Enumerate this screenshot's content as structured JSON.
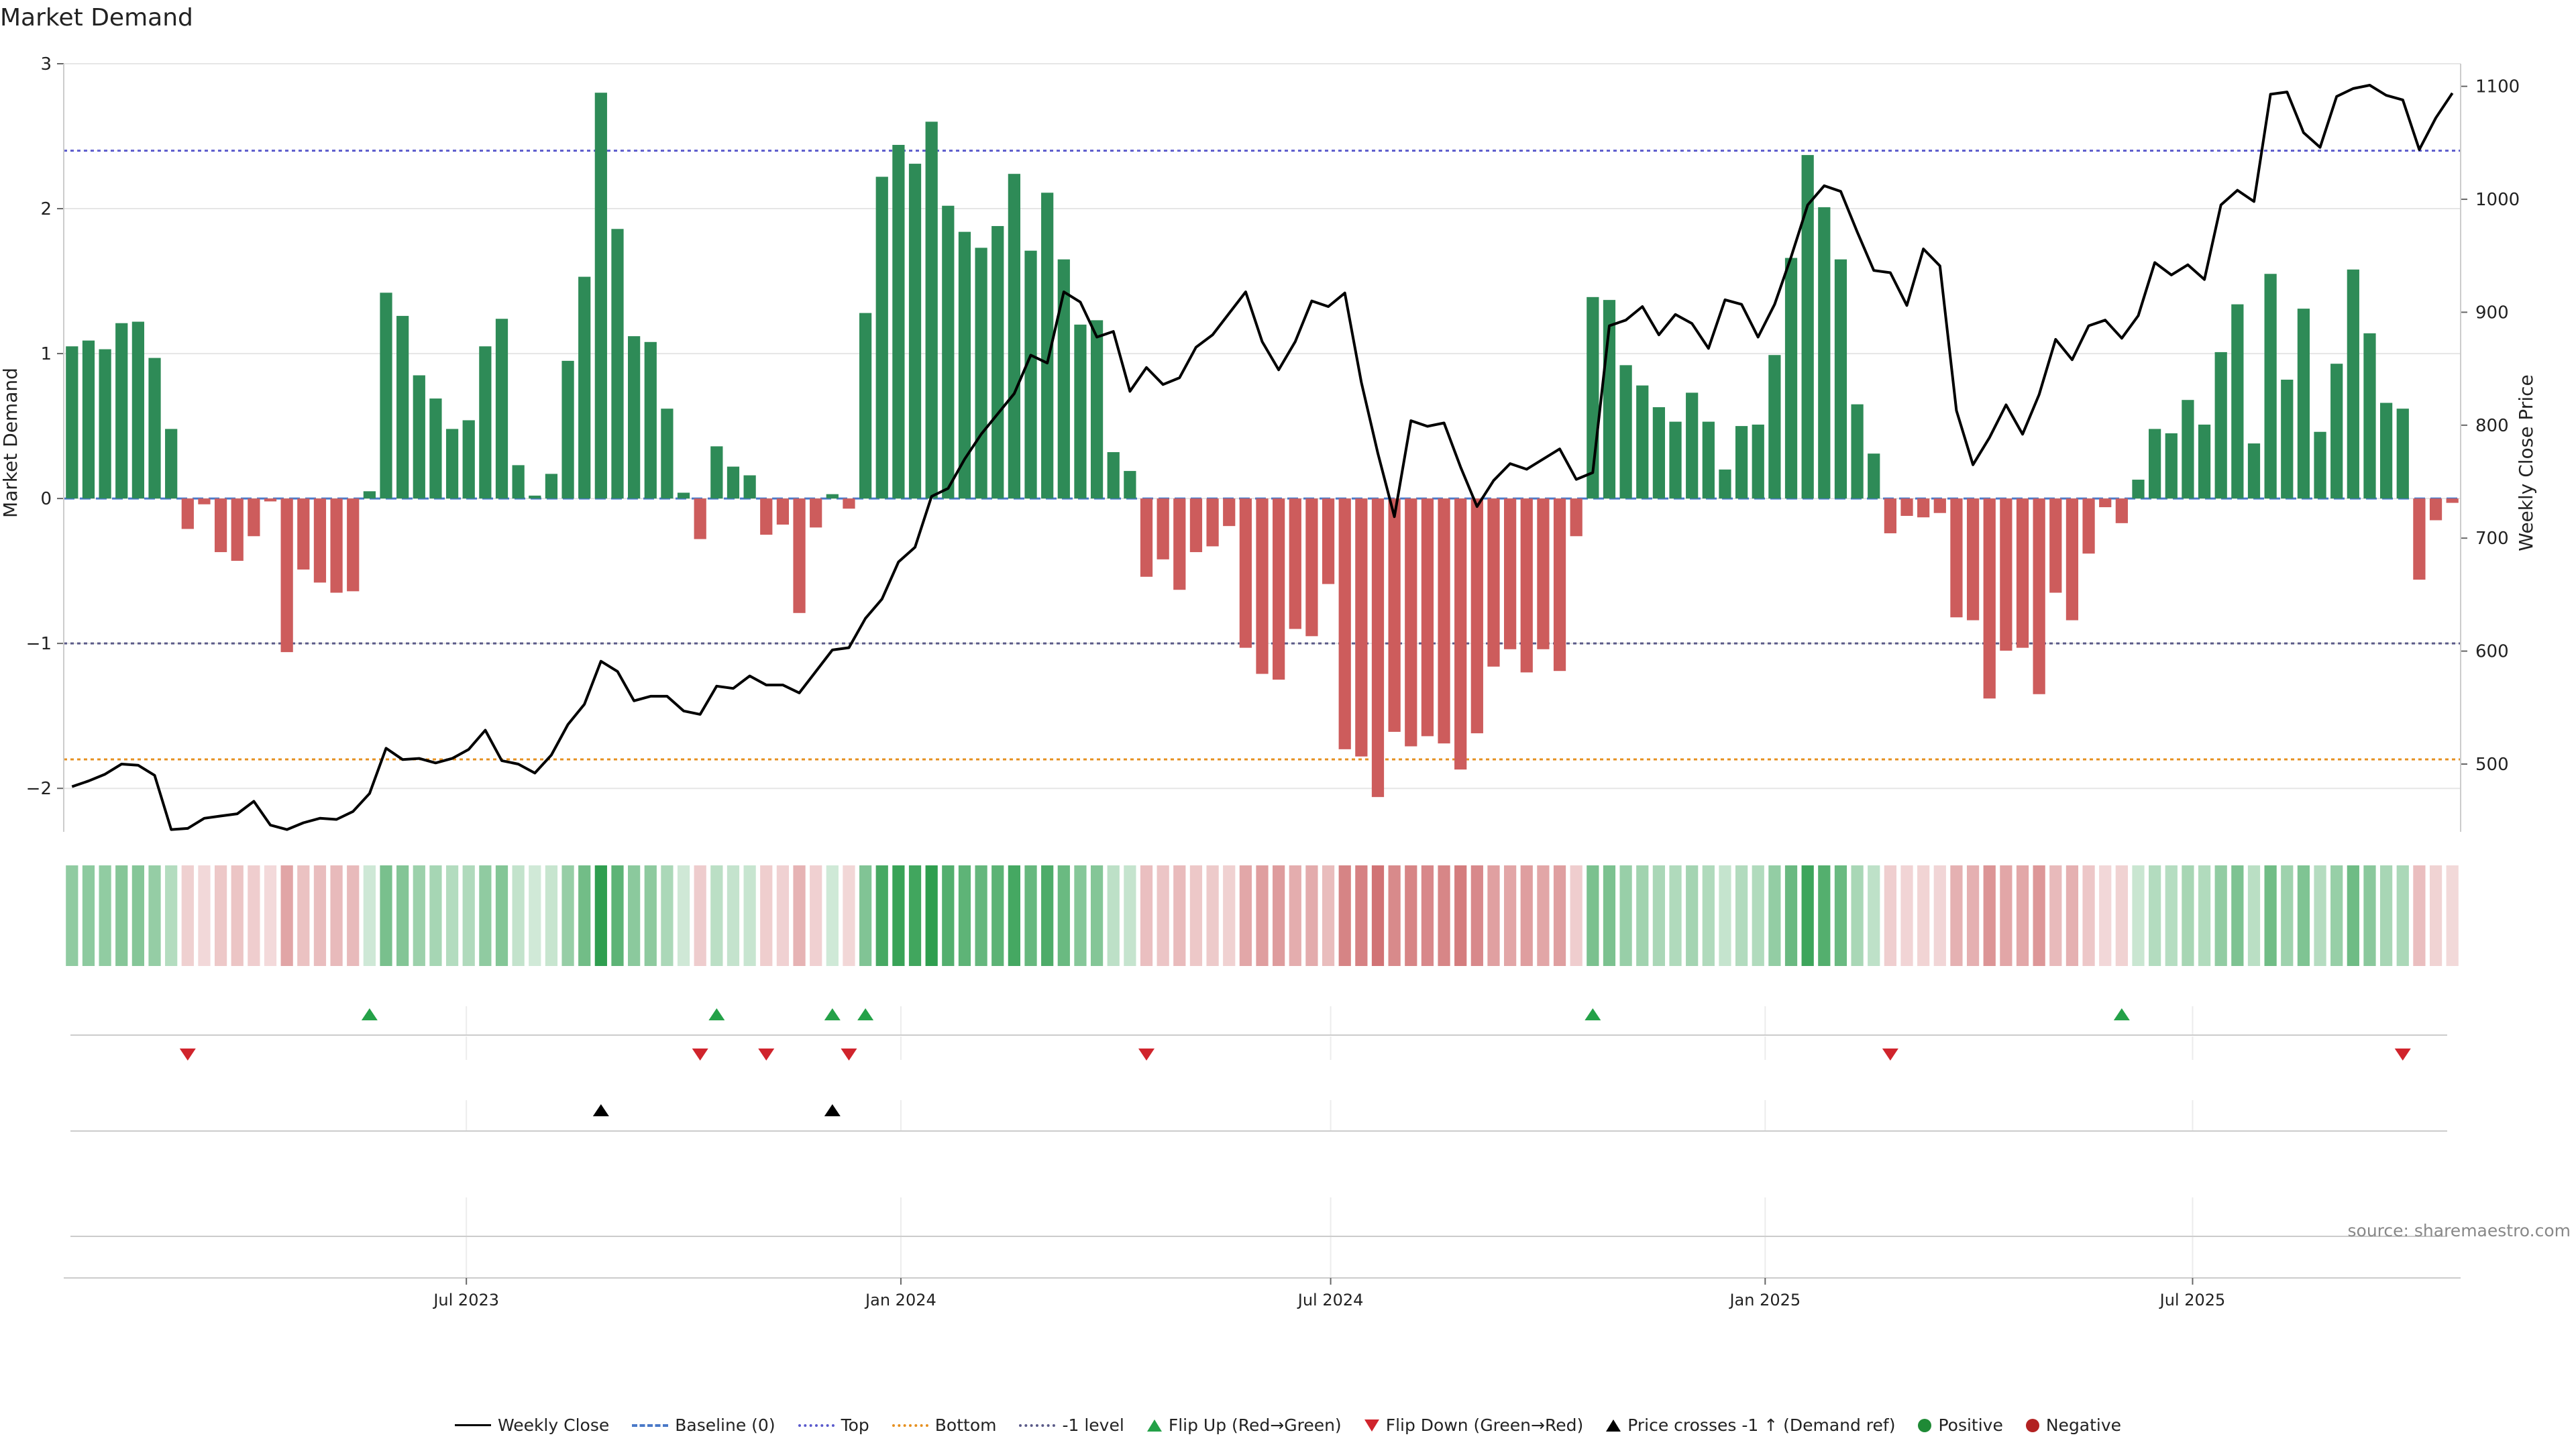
{
  "title": "Market Demand",
  "source": "source: sharemaestro.com",
  "chart_data": {
    "type": "bar",
    "title": "Market Demand",
    "ylabel": "Market Demand",
    "y2label": "Weekly Close Price",
    "ylim": [
      -2.3,
      3.0
    ],
    "y_ticks": [
      3,
      2,
      1,
      0,
      -1,
      -2
    ],
    "y_tick_labels": [
      "3",
      "2",
      "1",
      "0",
      "−1",
      "−2"
    ],
    "y2lim": [
      440,
      1120
    ],
    "y2_ticks": [
      1100,
      1000,
      900,
      800,
      700,
      600,
      500
    ],
    "x_start": "2023-01-15",
    "week_days": 7,
    "x_ticks": [
      {
        "date": "2023-07-01",
        "label": "Jul 2023"
      },
      {
        "date": "2024-01-01",
        "label": "Jan 2024"
      },
      {
        "date": "2024-07-01",
        "label": "Jul 2024"
      },
      {
        "date": "2025-01-01",
        "label": "Jan 2025"
      },
      {
        "date": "2025-07-01",
        "label": "Jul 2025"
      }
    ],
    "reference_lines": [
      {
        "name": "Top",
        "value": 2.4,
        "color": "#5a5acc"
      },
      {
        "name": "Bottom",
        "value": -1.8,
        "color": "#e69020"
      },
      {
        "name": "-1 level",
        "value": -1.0,
        "color": "#5a5a88"
      },
      {
        "name": "Baseline (0)",
        "value": 0,
        "color": "#4a79c8"
      }
    ],
    "series": [
      {
        "name": "Market Demand",
        "type": "bar",
        "colors": {
          "positive": "#2e8b57",
          "negative": "#cd5c5c"
        },
        "values": [
          1.05,
          1.09,
          1.03,
          1.21,
          1.22,
          0.97,
          0.48,
          -0.21,
          -0.04,
          -0.37,
          -0.43,
          -0.26,
          -0.02,
          -1.06,
          -0.49,
          -0.58,
          -0.65,
          -0.64,
          0.05,
          1.42,
          1.26,
          0.85,
          0.69,
          0.48,
          0.54,
          1.05,
          1.24,
          0.23,
          0.02,
          0.17,
          0.95,
          1.53,
          2.8,
          1.86,
          1.12,
          1.08,
          0.62,
          0.04,
          -0.28,
          0.36,
          0.22,
          0.16,
          -0.25,
          -0.18,
          -0.79,
          -0.2,
          0.03,
          -0.07,
          1.28,
          2.22,
          2.44,
          2.31,
          2.6,
          2.02,
          1.84,
          1.73,
          1.88,
          2.24,
          1.71,
          2.11,
          1.65,
          1.2,
          1.23,
          0.32,
          0.19,
          -0.54,
          -0.42,
          -0.63,
          -0.37,
          -0.33,
          -0.19,
          -1.03,
          -1.21,
          -1.25,
          -0.9,
          -0.95,
          -0.59,
          -1.73,
          -1.78,
          -2.06,
          -1.61,
          -1.71,
          -1.64,
          -1.69,
          -1.87,
          -1.62,
          -1.16,
          -1.04,
          -1.2,
          -1.04,
          -1.19,
          -0.26,
          1.39,
          1.37,
          0.92,
          0.78,
          0.63,
          0.53,
          0.73,
          0.53,
          0.2,
          0.5,
          0.51,
          0.99,
          1.66,
          2.37,
          2.01,
          1.65,
          0.65,
          0.31,
          -0.24,
          -0.12,
          -0.13,
          -0.1,
          -0.82,
          -0.84,
          -1.38,
          -1.05,
          -1.03,
          -1.35,
          -0.65,
          -0.84,
          -0.38,
          -0.06,
          -0.17,
          0.13,
          0.48,
          0.45,
          0.68,
          0.51,
          1.01,
          1.34,
          0.38,
          1.55,
          0.82,
          1.31,
          0.46,
          0.93,
          1.58,
          1.14,
          0.66,
          0.62,
          -0.56,
          -0.15,
          -0.03
        ]
      },
      {
        "name": "Weekly Close",
        "type": "line",
        "color": "#000000",
        "values": [
          480,
          485,
          491,
          500,
          499,
          490,
          442,
          443,
          452,
          454,
          456,
          467,
          446,
          442,
          448,
          452,
          451,
          458,
          474,
          514,
          504,
          505,
          501,
          505,
          513,
          530,
          503,
          500,
          492,
          508,
          535,
          553,
          591,
          582,
          556,
          560,
          560,
          547,
          544,
          569,
          567,
          578,
          570,
          570,
          563,
          582,
          601,
          603,
          629,
          646,
          679,
          692,
          737,
          744,
          770,
          792,
          810,
          828,
          862,
          855,
          918,
          909,
          878,
          883,
          830,
          851,
          836,
          842,
          869,
          880,
          899,
          918,
          874,
          849,
          874,
          910,
          905,
          917,
          838,
          775,
          719,
          804,
          799,
          802,
          763,
          728,
          751,
          766,
          761,
          770,
          779,
          752,
          758,
          888,
          893,
          905,
          880,
          898,
          890,
          868,
          911,
          907,
          878,
          907,
          949,
          995,
          1012,
          1007,
          971,
          937,
          935,
          906,
          956,
          941,
          813,
          765,
          789,
          818,
          792,
          827,
          876,
          858,
          888,
          893,
          877,
          897,
          944,
          933,
          942,
          929,
          995,
          1008,
          998,
          1093,
          1095,
          1059,
          1046,
          1091,
          1098,
          1101,
          1092,
          1088,
          1044,
          1072,
          1094
        ]
      }
    ],
    "heatmap_strip": {
      "name": "Demand intensity",
      "encoding": "color by Market Demand value"
    },
    "event_markers": [
      {
        "name": "Flip Up (Red→Green)",
        "weeks": [
          18,
          39,
          46,
          48,
          92,
          124
        ]
      },
      {
        "name": "Flip Down (Green→Red)",
        "weeks": [
          7,
          38,
          42,
          47,
          65,
          110,
          141
        ]
      },
      {
        "name": "Price crosses -1 ↑ (Demand ref)",
        "weeks": [
          32,
          46
        ]
      }
    ]
  },
  "legend": [
    {
      "label": "Weekly Close",
      "icon": "solid-line"
    },
    {
      "label": "Baseline (0)",
      "icon": "dashed-line"
    },
    {
      "label": "Top",
      "icon": "dotted-line-blue"
    },
    {
      "label": "Bottom",
      "icon": "dotted-line-orange"
    },
    {
      "label": "-1 level",
      "icon": "dotted-line-gray"
    },
    {
      "label": "Flip Up (Red→Green)",
      "icon": "triangle-up-green"
    },
    {
      "label": "Flip Down (Green→Red)",
      "icon": "triangle-down-red"
    },
    {
      "label": "Price crosses -1 ↑ (Demand ref)",
      "icon": "triangle-up-black"
    },
    {
      "label": "Positive",
      "icon": "circle-green"
    },
    {
      "label": "Negative",
      "icon": "circle-red"
    }
  ]
}
